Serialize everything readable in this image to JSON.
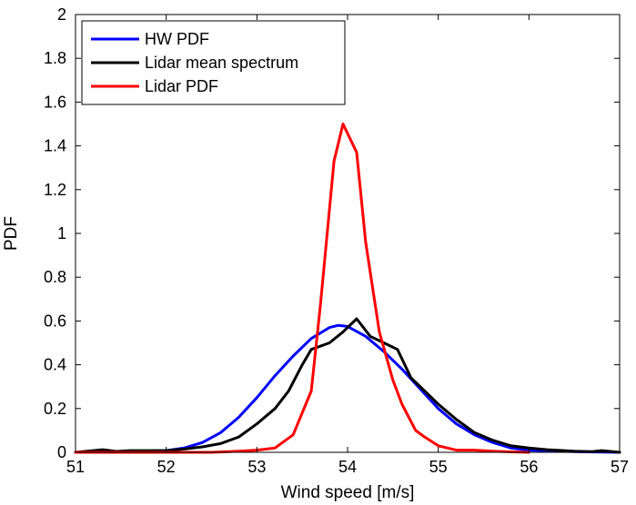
{
  "chart_data": {
    "type": "line",
    "title": "",
    "xlabel": "Wind speed [m/s]",
    "ylabel": "PDF",
    "xlim": [
      51,
      57
    ],
    "ylim": [
      0,
      2
    ],
    "xticks": [
      "51",
      "52",
      "53",
      "54",
      "55",
      "56",
      "57"
    ],
    "yticks": [
      "0",
      "0.2",
      "0.4",
      "0.6",
      "0.8",
      "1",
      "1.2",
      "1.4",
      "1.6",
      "1.8",
      "2"
    ],
    "grid": false,
    "legend_position": "top-left",
    "series": [
      {
        "name": "HW PDF",
        "color": "#0000ff",
        "x": [
          51.0,
          51.5,
          52.0,
          52.2,
          52.4,
          52.6,
          52.8,
          53.0,
          53.2,
          53.4,
          53.6,
          53.8,
          53.9,
          54.0,
          54.2,
          54.4,
          54.6,
          54.8,
          55.0,
          55.2,
          55.4,
          55.6,
          55.8,
          56.0,
          56.5,
          57.0
        ],
        "y": [
          0.0,
          0.002,
          0.008,
          0.02,
          0.045,
          0.09,
          0.16,
          0.25,
          0.35,
          0.44,
          0.52,
          0.57,
          0.58,
          0.575,
          0.53,
          0.46,
          0.38,
          0.29,
          0.2,
          0.13,
          0.08,
          0.045,
          0.02,
          0.01,
          0.003,
          0.0
        ]
      },
      {
        "name": "Lidar mean spectrum",
        "color": "#000000",
        "x": [
          51.0,
          51.3,
          51.45,
          51.6,
          52.0,
          52.2,
          52.4,
          52.6,
          52.8,
          53.0,
          53.2,
          53.35,
          53.5,
          53.6,
          53.8,
          53.95,
          54.1,
          54.25,
          54.4,
          54.55,
          54.7,
          54.85,
          55.0,
          55.2,
          55.4,
          55.6,
          55.8,
          56.0,
          56.2,
          56.5,
          56.7,
          56.8,
          57.0
        ],
        "y": [
          0.0,
          0.012,
          0.004,
          0.008,
          0.008,
          0.015,
          0.025,
          0.04,
          0.07,
          0.13,
          0.2,
          0.28,
          0.4,
          0.47,
          0.5,
          0.55,
          0.61,
          0.53,
          0.5,
          0.47,
          0.34,
          0.28,
          0.22,
          0.15,
          0.09,
          0.055,
          0.03,
          0.02,
          0.012,
          0.005,
          0.003,
          0.008,
          0.0
        ]
      },
      {
        "name": "Lidar PDF",
        "color": "#ff0000",
        "x": [
          51.0,
          52.5,
          52.8,
          53.0,
          53.2,
          53.4,
          53.6,
          53.7,
          53.85,
          53.95,
          54.1,
          54.2,
          54.35,
          54.5,
          54.6,
          54.75,
          54.85,
          55.0,
          55.2,
          55.4,
          55.6,
          55.8,
          56.0
        ],
        "y": [
          0.0,
          0.0,
          0.005,
          0.01,
          0.02,
          0.08,
          0.28,
          0.67,
          1.33,
          1.5,
          1.37,
          0.96,
          0.55,
          0.33,
          0.22,
          0.1,
          0.07,
          0.03,
          0.01,
          0.01,
          0.005,
          0.002,
          0.0
        ]
      }
    ]
  }
}
